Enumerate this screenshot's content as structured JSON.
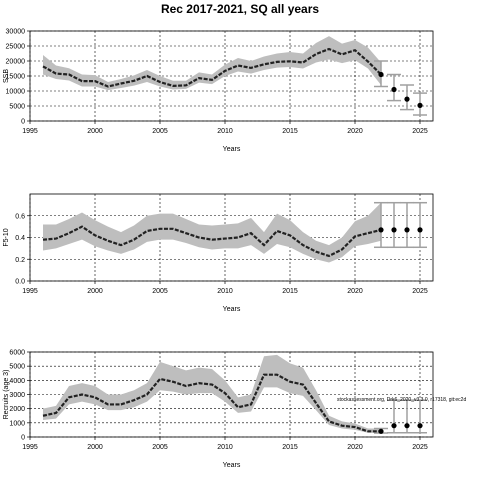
{
  "title": "Rec 2017-2021, SQ all years",
  "chart_data": [
    {
      "type": "line",
      "xlabel": "Years",
      "ylabel": "SSB",
      "xlim": [
        1995,
        2026
      ],
      "ylim": [
        0,
        30000
      ],
      "xticks": [
        1995,
        2000,
        2005,
        2010,
        2015,
        2020,
        2025
      ],
      "yticks": [
        0,
        5000,
        10000,
        15000,
        20000,
        25000,
        30000
      ],
      "grid": true,
      "series": [
        {
          "x": [
            1996,
            1997,
            1998,
            1999,
            2000,
            2001,
            2002,
            2003,
            2004,
            2005,
            2006,
            2007,
            2008,
            2009,
            2010,
            2011,
            2012,
            2013,
            2014,
            2015,
            2016,
            2017,
            2018,
            2019,
            2020,
            2021,
            2022
          ],
          "values": [
            18200,
            15800,
            15500,
            13300,
            13300,
            11500,
            12500,
            13400,
            15000,
            13000,
            11700,
            11900,
            14300,
            13700,
            16700,
            18500,
            17700,
            18900,
            19700,
            19900,
            19500,
            22300,
            24000,
            22200,
            23600,
            19800,
            15500
          ],
          "lower": [
            15500,
            14000,
            13500,
            11500,
            11500,
            10300,
            11000,
            11800,
            13000,
            11500,
            10500,
            10700,
            12800,
            12300,
            15000,
            16500,
            15800,
            17000,
            17800,
            18000,
            17500,
            19500,
            20500,
            19300,
            20300,
            17500,
            12000
          ],
          "upper": [
            22000,
            18500,
            17600,
            15500,
            15300,
            13000,
            14000,
            15200,
            17000,
            15000,
            13400,
            13400,
            16200,
            15500,
            18800,
            21000,
            20000,
            21500,
            22500,
            23000,
            22500,
            26000,
            28300,
            25800,
            27000,
            24500,
            19500
          ]
        }
      ],
      "projection": {
        "x": [
          2022,
          2023,
          2024,
          2025
        ],
        "values": [
          15500,
          10500,
          7300,
          5200
        ],
        "lower": [
          11500,
          6800,
          3800,
          2000
        ],
        "upper": [
          20000,
          15500,
          12000,
          9300
        ]
      }
    },
    {
      "type": "line",
      "xlabel": "Years",
      "ylabel": "F5-10",
      "xlim": [
        1995,
        2026
      ],
      "ylim": [
        0,
        0.8
      ],
      "xticks": [
        1995,
        2000,
        2005,
        2010,
        2015,
        2020,
        2025
      ],
      "yticks": [
        0.0,
        0.2,
        0.4,
        0.6
      ],
      "grid": true,
      "series": [
        {
          "x": [
            1996,
            1997,
            1998,
            1999,
            2000,
            2001,
            2002,
            2003,
            2004,
            2005,
            2006,
            2007,
            2008,
            2009,
            2010,
            2011,
            2012,
            2013,
            2014,
            2015,
            2016,
            2017,
            2018,
            2019,
            2020,
            2021,
            2022
          ],
          "values": [
            0.38,
            0.39,
            0.44,
            0.5,
            0.42,
            0.37,
            0.33,
            0.38,
            0.46,
            0.48,
            0.48,
            0.44,
            0.4,
            0.38,
            0.39,
            0.4,
            0.44,
            0.33,
            0.46,
            0.42,
            0.33,
            0.27,
            0.23,
            0.29,
            0.41,
            0.44,
            0.47
          ],
          "lower": [
            0.28,
            0.3,
            0.34,
            0.38,
            0.32,
            0.28,
            0.25,
            0.29,
            0.36,
            0.38,
            0.38,
            0.35,
            0.31,
            0.29,
            0.3,
            0.3,
            0.33,
            0.25,
            0.34,
            0.31,
            0.25,
            0.2,
            0.17,
            0.22,
            0.32,
            0.34,
            0.37
          ],
          "upper": [
            0.52,
            0.52,
            0.57,
            0.63,
            0.56,
            0.5,
            0.45,
            0.51,
            0.6,
            0.62,
            0.62,
            0.57,
            0.52,
            0.51,
            0.52,
            0.53,
            0.58,
            0.45,
            0.62,
            0.56,
            0.45,
            0.37,
            0.33,
            0.4,
            0.55,
            0.6,
            0.72
          ]
        }
      ],
      "projection": {
        "x": [
          2022,
          2023,
          2024,
          2025
        ],
        "values": [
          0.47,
          0.47,
          0.47,
          0.47
        ],
        "lower": [
          0.31,
          0.31,
          0.31,
          0.31
        ],
        "upper": [
          0.72,
          0.72,
          0.72,
          0.72
        ]
      }
    },
    {
      "type": "line",
      "xlabel": "Years",
      "ylabel": "Recruits (age 3)",
      "xlim": [
        1995,
        2026
      ],
      "ylim": [
        0,
        6000
      ],
      "xticks": [
        1995,
        2000,
        2005,
        2010,
        2015,
        2020,
        2025
      ],
      "yticks": [
        0,
        1000,
        2000,
        3000,
        4000,
        5000,
        6000
      ],
      "grid": true,
      "series": [
        {
          "x": [
            1996,
            1997,
            1998,
            1999,
            2000,
            2001,
            2002,
            2003,
            2004,
            2005,
            2006,
            2007,
            2008,
            2009,
            2010,
            2011,
            2012,
            2013,
            2014,
            2015,
            2016,
            2017,
            2018,
            2019,
            2020,
            2021,
            2022
          ],
          "values": [
            1500,
            1700,
            2800,
            3000,
            2800,
            2300,
            2300,
            2600,
            3000,
            4100,
            3900,
            3600,
            3800,
            3700,
            3100,
            2100,
            2300,
            4400,
            4400,
            3900,
            3700,
            2400,
            1100,
            800,
            700,
            400,
            400
          ],
          "lower": [
            1200,
            1300,
            2300,
            2500,
            2300,
            1900,
            1900,
            2100,
            2500,
            3300,
            3200,
            3000,
            3100,
            3100,
            2500,
            1700,
            1800,
            3500,
            3500,
            3100,
            2900,
            1900,
            850,
            600,
            500,
            300,
            280
          ],
          "upper": [
            2000,
            2200,
            3600,
            3800,
            3600,
            3000,
            3000,
            3300,
            3800,
            5300,
            5000,
            4700,
            4900,
            4800,
            4000,
            2800,
            3000,
            5700,
            5800,
            5200,
            4900,
            3300,
            1500,
            1100,
            950,
            600,
            600
          ]
        }
      ],
      "projection": {
        "x": [
          2022,
          2023,
          2024,
          2025
        ],
        "values": [
          400,
          800,
          800,
          800
        ],
        "lower": [
          280,
          300,
          300,
          300
        ],
        "upper": [
          600,
          2600,
          2600,
          2600
        ]
      },
      "annotation": "stockassessment.org, Drk6_2020_v3.3.0, r17318, git:ec2d"
    }
  ],
  "colors": {
    "band": "#bebebe",
    "line": "#222222",
    "whisker": "#a0a0a0"
  }
}
